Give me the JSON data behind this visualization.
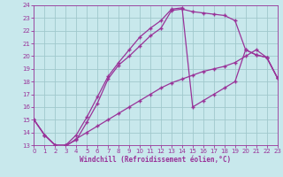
{
  "xlabel": "Windchill (Refroidissement éolien,°C)",
  "bg_color": "#c8e8ec",
  "grid_color": "#a0c8cc",
  "line_color": "#993399",
  "xmin": 0,
  "xmax": 23,
  "ymin": 13,
  "ymax": 24,
  "curve1_x": [
    0,
    1,
    2,
    3,
    4,
    5,
    6,
    7,
    8,
    9,
    10,
    11,
    12,
    13,
    14,
    15,
    16,
    17,
    18,
    19,
    20,
    21,
    22,
    23
  ],
  "curve1_y": [
    15.0,
    13.8,
    13.0,
    13.0,
    13.4,
    14.8,
    16.3,
    18.2,
    19.3,
    20.0,
    20.8,
    21.6,
    22.2,
    23.6,
    23.7,
    23.5,
    23.4,
    23.3,
    23.2,
    22.8,
    20.5,
    20.1,
    19.9,
    18.3
  ],
  "curve2_x": [
    0,
    1,
    2,
    3,
    4,
    5,
    6,
    7,
    8,
    9,
    10,
    11,
    12,
    13,
    14,
    15,
    16,
    17,
    18,
    19,
    20,
    21,
    22,
    23
  ],
  "curve2_y": [
    15.0,
    13.8,
    13.0,
    13.0,
    13.8,
    15.2,
    16.8,
    18.4,
    19.5,
    20.5,
    21.5,
    22.2,
    22.8,
    23.7,
    23.8,
    16.0,
    16.5,
    17.0,
    17.5,
    18.0,
    20.5,
    20.1,
    19.9,
    18.3
  ],
  "curve3_x": [
    0,
    1,
    2,
    3,
    4,
    5,
    6,
    7,
    8,
    9,
    10,
    11,
    12,
    13,
    14,
    15,
    16,
    17,
    18,
    19,
    20,
    21,
    22,
    23
  ],
  "curve3_y": [
    15.0,
    13.8,
    13.0,
    12.9,
    13.5,
    14.0,
    14.5,
    15.0,
    15.5,
    16.0,
    16.5,
    17.0,
    17.5,
    17.9,
    18.2,
    18.5,
    18.8,
    19.0,
    19.2,
    19.5,
    20.0,
    20.5,
    19.9,
    18.3
  ]
}
